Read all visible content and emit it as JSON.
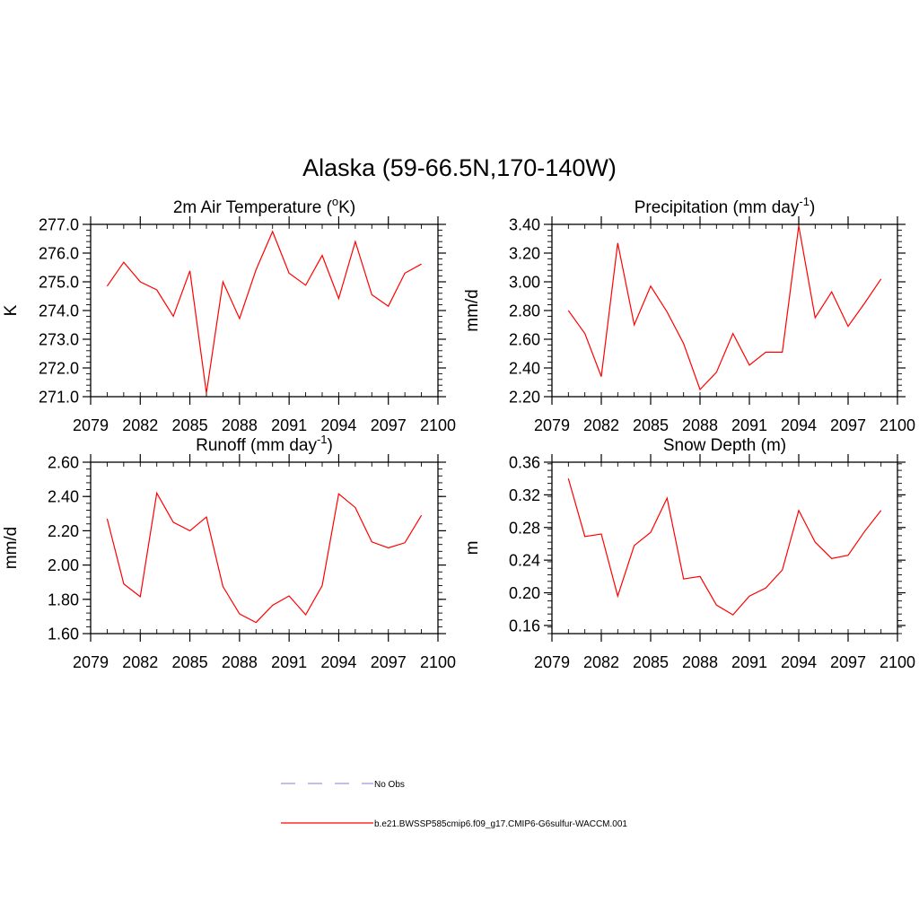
{
  "figure": {
    "title": "Alaska (59-66.5N,170-140W)"
  },
  "colors": {
    "model_line": "#ff0000",
    "obs_line": "#9999dd",
    "axes": "#000000"
  },
  "legend": {
    "entries": [
      {
        "label": "No Obs",
        "style": "dashed",
        "color": "#9999dd"
      },
      {
        "label": "b.e21.BWSSP585cmip6.f09_g17.CMIP6-G6sulfur-WACCM.001",
        "style": "solid",
        "color": "#ff0000"
      }
    ],
    "placement": "bottom-center"
  },
  "chart_data": [
    {
      "type": "line",
      "title": "2m Air Temperature (",
      "title_sup": "o",
      "title_after": "K)",
      "ylabel": "K",
      "xlim": [
        2079,
        2100
      ],
      "ylim": [
        271.0,
        277.0
      ],
      "x_ticks": [
        2079,
        2082,
        2085,
        2088,
        2091,
        2094,
        2097,
        2100
      ],
      "y_ticks": [
        "271.0",
        "272.0",
        "273.0",
        "274.0",
        "275.0",
        "276.0",
        "277.0"
      ],
      "series": [
        {
          "x": [
            2080,
            2081,
            2082,
            2083,
            2084,
            2085,
            2086,
            2087,
            2088,
            2089,
            2090,
            2091,
            2092,
            2093,
            2094,
            2095,
            2096,
            2097,
            2098,
            2099
          ],
          "values": [
            274.85,
            275.68,
            275.0,
            274.72,
            273.8,
            275.38,
            271.12,
            275.0,
            273.72,
            275.42,
            276.75,
            275.3,
            274.88,
            275.92,
            274.42,
            276.4,
            274.55,
            274.15,
            275.3,
            275.62
          ]
        }
      ]
    },
    {
      "type": "line",
      "title": "Precipitation (mm day",
      "title_sup": "-1",
      "title_after": ")",
      "ylabel": "mm/d",
      "xlim": [
        2079,
        2100
      ],
      "ylim": [
        2.2,
        3.4
      ],
      "x_ticks": [
        2079,
        2082,
        2085,
        2088,
        2091,
        2094,
        2097,
        2100
      ],
      "y_ticks": [
        "2.20",
        "2.40",
        "2.60",
        "2.80",
        "3.00",
        "3.20",
        "3.40"
      ],
      "series": [
        {
          "x": [
            2080,
            2081,
            2082,
            2083,
            2084,
            2085,
            2086,
            2087,
            2088,
            2089,
            2090,
            2091,
            2092,
            2093,
            2094,
            2095,
            2096,
            2097,
            2098,
            2099
          ],
          "values": [
            2.8,
            2.64,
            2.34,
            3.27,
            2.7,
            2.97,
            2.79,
            2.57,
            2.25,
            2.37,
            2.64,
            2.42,
            2.51,
            2.51,
            3.39,
            2.75,
            2.93,
            2.69,
            2.85,
            3.02
          ]
        }
      ]
    },
    {
      "type": "line",
      "title": "Runoff (mm day",
      "title_sup": "-1",
      "title_after": ")",
      "ylabel": "mm/d",
      "xlim": [
        2079,
        2100
      ],
      "ylim": [
        1.6,
        2.6
      ],
      "x_ticks": [
        2079,
        2082,
        2085,
        2088,
        2091,
        2094,
        2097,
        2100
      ],
      "y_ticks": [
        "1.60",
        "1.80",
        "2.00",
        "2.20",
        "2.40",
        "2.60"
      ],
      "series": [
        {
          "x": [
            2080,
            2081,
            2082,
            2083,
            2084,
            2085,
            2086,
            2087,
            2088,
            2089,
            2090,
            2091,
            2092,
            2093,
            2094,
            2095,
            2096,
            2097,
            2098,
            2099
          ],
          "values": [
            2.27,
            1.89,
            1.815,
            2.42,
            2.25,
            2.2,
            2.28,
            1.875,
            1.715,
            1.665,
            1.765,
            1.82,
            1.71,
            1.88,
            2.415,
            2.335,
            2.135,
            2.1,
            2.13,
            2.29
          ]
        }
      ]
    },
    {
      "type": "line",
      "title": "Snow Depth (m)",
      "title_sup": "",
      "title_after": "",
      "ylabel": "m",
      "xlim": [
        2079,
        2100
      ],
      "ylim": [
        0.15,
        0.36
      ],
      "x_ticks": [
        2079,
        2082,
        2085,
        2088,
        2091,
        2094,
        2097,
        2100
      ],
      "y_ticks": [
        "0.16",
        "0.20",
        "0.24",
        "0.28",
        "0.32",
        "0.36"
      ],
      "series": [
        {
          "x": [
            2080,
            2081,
            2082,
            2083,
            2084,
            2085,
            2086,
            2087,
            2088,
            2089,
            2090,
            2091,
            2092,
            2093,
            2094,
            2095,
            2096,
            2097,
            2098,
            2099
          ],
          "values": [
            0.34,
            0.269,
            0.272,
            0.196,
            0.258,
            0.274,
            0.316,
            0.217,
            0.22,
            0.185,
            0.173,
            0.196,
            0.206,
            0.228,
            0.301,
            0.262,
            0.242,
            0.246,
            0.275,
            0.301
          ]
        }
      ]
    }
  ]
}
